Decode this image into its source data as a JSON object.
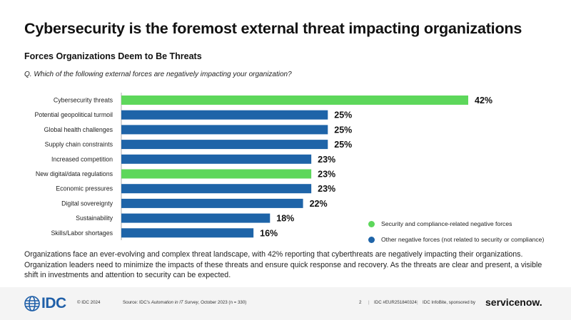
{
  "title": "Cybersecurity is the foremost external threat impacting organizations",
  "subtitle": "Forces Organizations Deem to Be Threats",
  "question": "Q. Which of the following external forces are negatively impacting your organization?",
  "colors": {
    "security": "#5dd75b",
    "other": "#1e64a8"
  },
  "chart_data": {
    "type": "bar",
    "orientation": "horizontal",
    "categories": [
      "Cybersecurity threats",
      "Potential geopolitical turmoil",
      "Global health challenges",
      "Supply chain constraints",
      "Increased competition",
      "New digital/data regulations",
      "Economic pressures",
      "Digital sovereignty",
      "Sustainability",
      "Skills/Labor shortages"
    ],
    "values": [
      42,
      25,
      25,
      25,
      23,
      23,
      23,
      22,
      18,
      16
    ],
    "value_labels": [
      "42%",
      "25%",
      "25%",
      "25%",
      "23%",
      "23%",
      "23%",
      "22%",
      "18%",
      "16%"
    ],
    "groups": [
      "security",
      "other",
      "other",
      "other",
      "other",
      "security",
      "other",
      "other",
      "other",
      "other"
    ],
    "unit": "%",
    "xlim": [
      0,
      42
    ],
    "grid": false,
    "legend_position": "bottom-right"
  },
  "legend": {
    "items": [
      {
        "key": "security",
        "label": "Security and compliance-related negative forces"
      },
      {
        "key": "other",
        "label": "Other negative forces (not related to security or compliance)"
      }
    ]
  },
  "body_text": "Organizations face an ever-evolving and complex threat landscape, with 42% reporting that cyberthreats are negatively impacting their organizations. Organization leaders need to minimize the impacts of these threats and ensure quick response and recovery. As the threats are clear and present, a visible shift in investments and attention to security can be expected.",
  "footer": {
    "logo_text": "IDC",
    "copyright": "© IDC 2024",
    "source_prefix": "Source: IDC's ",
    "source_survey": "Automation in IT Survey",
    "source_suffix": ", October 2023 (n = 330)",
    "page_number": "2",
    "doc_id": "IDC #EUR251840324",
    "infobite": "IDC InfoBite, sponsored by",
    "sponsor": "servicenow."
  }
}
